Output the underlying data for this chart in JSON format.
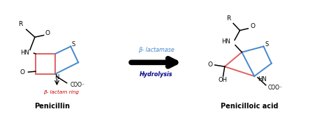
{
  "bg_color": "#ffffff",
  "penicillin_label": "Penicillin",
  "penicilloic_label": "Penicilloic acid",
  "beta_lactam_ring_label": "β- lactam ring",
  "arrow_top_label": "β- lactamase",
  "arrow_bot_label": "Hydrolysis",
  "arrow_top_color": "#4488cc",
  "arrow_bot_color": "#000088",
  "beta_lactam_color": "#cc0000",
  "pink_color": "#e06060",
  "blue_ring_color": "#4488cc",
  "black": "#000000"
}
